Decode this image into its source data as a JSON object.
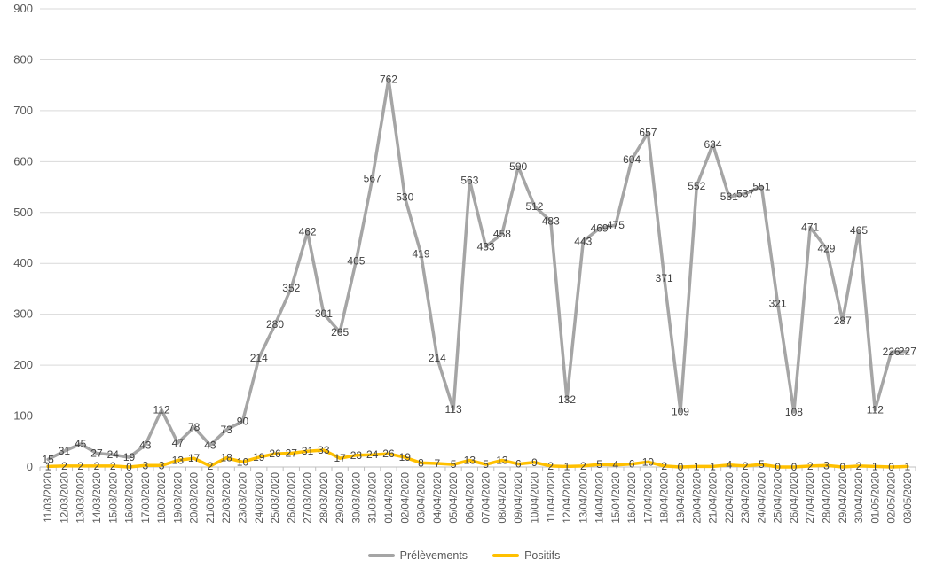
{
  "chart_data": {
    "type": "line",
    "ylim": [
      0,
      900
    ],
    "yticks": [
      0,
      100,
      200,
      300,
      400,
      500,
      600,
      700,
      800,
      900
    ],
    "grid": true,
    "legend_position": "bottom",
    "categories": [
      "11/03/2020",
      "12/03/2020",
      "13/03/2020",
      "14/03/2020",
      "15/03/2020",
      "16/03/2020",
      "17/03/2020",
      "18/03/2020",
      "19/03/2020",
      "20/03/2020",
      "21/03/2020",
      "22/03/2020",
      "23/03/2020",
      "24/03/2020",
      "25/03/2020",
      "26/03/2020",
      "27/03/2020",
      "28/03/2020",
      "29/03/2020",
      "30/03/2020",
      "31/03/2020",
      "01/04/2020",
      "02/04/2020",
      "03/04/2020",
      "04/04/2020",
      "05/04/2020",
      "06/04/2020",
      "07/04/2020",
      "08/04/2020",
      "09/04/2020",
      "10/04/2020",
      "11/04/2020",
      "12/04/2020",
      "13/04/2020",
      "14/04/2020",
      "15/04/2020",
      "16/04/2020",
      "17/04/2020",
      "18/04/2020",
      "19/04/2020",
      "20/04/2020",
      "21/04/2020",
      "22/04/2020",
      "23/04/2020",
      "24/04/2020",
      "25/04/2020",
      "26/04/2020",
      "27/04/2020",
      "28/04/2020",
      "29/04/2020",
      "30/04/2020",
      "01/05/2020",
      "02/05/2020",
      "03/05/2020"
    ],
    "series": [
      {
        "name": "Prélèvements",
        "color": "#a5a5a5",
        "values": [
          15,
          31,
          45,
          27,
          24,
          19,
          43,
          112,
          47,
          78,
          43,
          73,
          90,
          214,
          280,
          352,
          462,
          301,
          265,
          405,
          567,
          762,
          530,
          419,
          214,
          113,
          563,
          433,
          458,
          590,
          512,
          483,
          132,
          443,
          469,
          475,
          604,
          657,
          371,
          109,
          552,
          634,
          531,
          537,
          551,
          321,
          108,
          471,
          429,
          287,
          465,
          112,
          226,
          227
        ]
      },
      {
        "name": "Positifs",
        "color": "#ffc000",
        "values": [
          1,
          2,
          2,
          2,
          2,
          0,
          3,
          3,
          13,
          17,
          2,
          18,
          10,
          19,
          26,
          27,
          31,
          33,
          17,
          23,
          24,
          26,
          19,
          8,
          7,
          5,
          13,
          5,
          13,
          6,
          9,
          2,
          1,
          2,
          5,
          4,
          6,
          10,
          2,
          0,
          1,
          1,
          4,
          2,
          5,
          0,
          0,
          2,
          3,
          0,
          2,
          1,
          0,
          1
        ]
      }
    ]
  }
}
